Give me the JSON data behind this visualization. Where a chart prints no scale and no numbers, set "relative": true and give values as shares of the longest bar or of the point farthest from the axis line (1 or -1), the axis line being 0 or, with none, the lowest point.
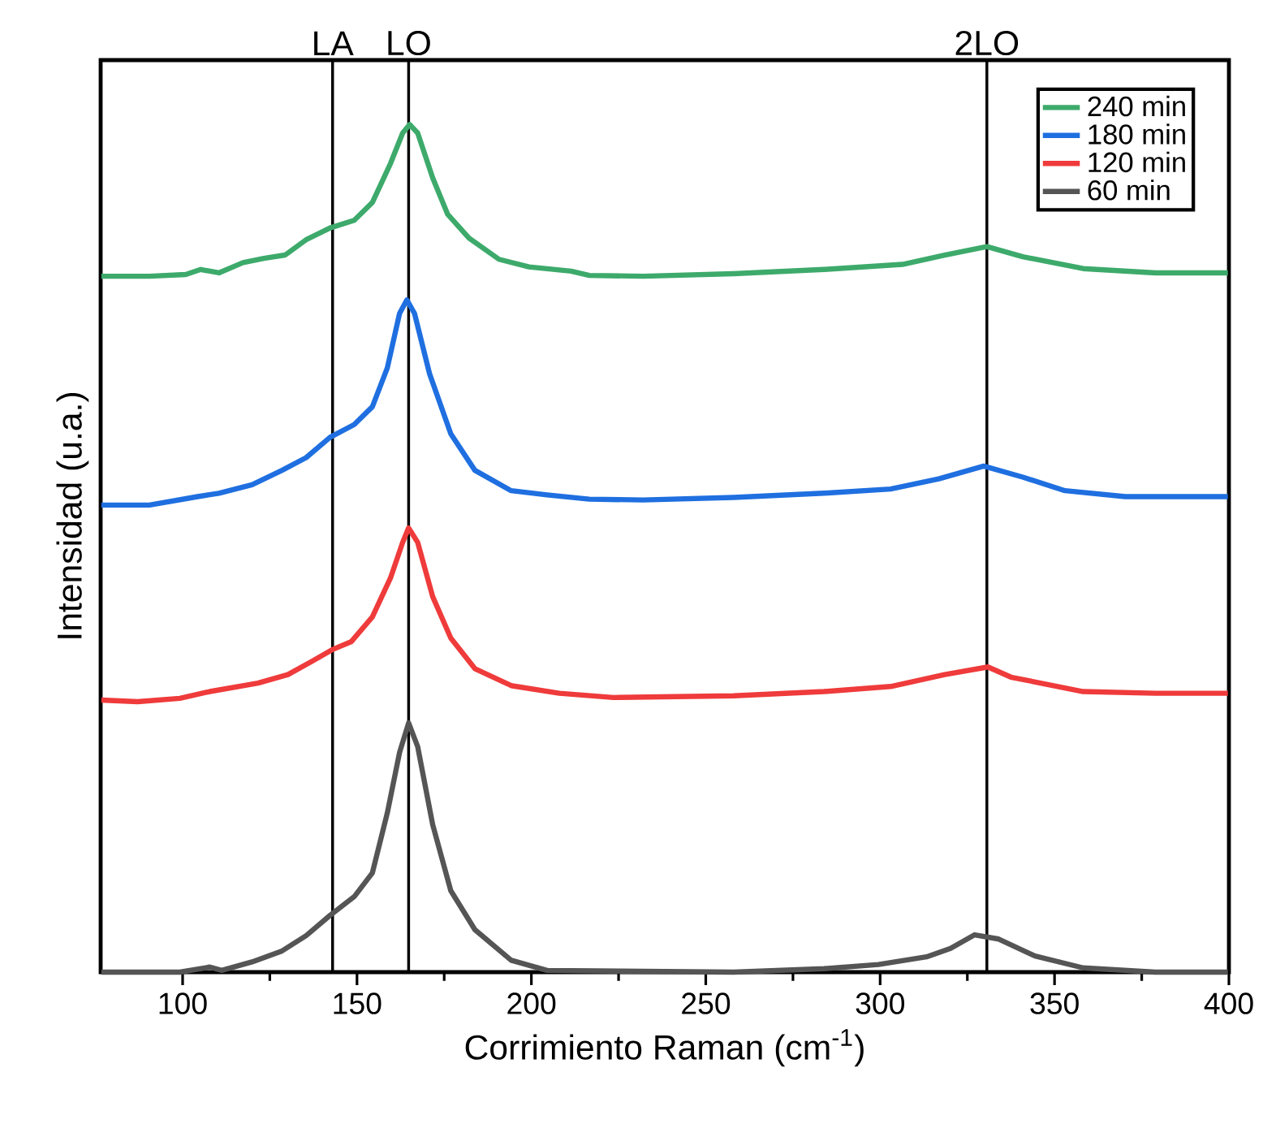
{
  "chart_data": {
    "type": "line",
    "xlabel": "Corrimiento Raman (cm$^{-1}$)",
    "ylabel": "Intensidad (u.a.)",
    "relative": true,
    "xlim": [
      76.5,
      400
    ],
    "xticks": [
      100,
      150,
      200,
      250,
      300,
      350,
      400
    ],
    "legend": "top right",
    "ref_lines": [
      {
        "axis": "x",
        "value": 143,
        "label": "LA",
        "color": "#000000"
      },
      {
        "axis": "x",
        "value": 164.8,
        "label": "LO",
        "color": "#000000"
      },
      {
        "axis": "x",
        "value": 330.6,
        "label": "2LO",
        "color": "#000000"
      }
    ],
    "series": [
      {
        "name": "240 min",
        "color": "#3daa6b",
        "x": [
          76.7,
          90.5,
          100.9,
          105.2,
          110.4,
          117.3,
          123.3,
          129.4,
          135.4,
          142.3,
          149.2,
          154.4,
          159.6,
          163.1,
          165.1,
          167.4,
          171.7,
          176.0,
          182.1,
          190.7,
          199.3,
          211.4,
          216.6,
          232.1,
          258.0,
          283.9,
          306.4,
          318.5,
          330.6,
          340.9,
          358.2,
          378.9,
          399.7
        ],
        "values": [
          0.821,
          0.821,
          0.823,
          0.829,
          0.825,
          0.837,
          0.842,
          0.846,
          0.864,
          0.878,
          0.887,
          0.908,
          0.954,
          0.99,
          1.0,
          0.99,
          0.937,
          0.894,
          0.866,
          0.841,
          0.832,
          0.827,
          0.822,
          0.821,
          0.824,
          0.829,
          0.835,
          0.846,
          0.856,
          0.844,
          0.83,
          0.825,
          0.825
        ]
      },
      {
        "name": "180 min",
        "color": "#1f6fe0",
        "x": [
          76.7,
          90.5,
          104.3,
          110.4,
          119.9,
          128.5,
          135.4,
          142.3,
          149.2,
          154.4,
          158.7,
          162.2,
          164.3,
          166.5,
          170.8,
          176.9,
          183.8,
          194.2,
          204.5,
          216.6,
          232.1,
          258.0,
          283.9,
          303.0,
          316.8,
          329.7,
          340.9,
          353.0,
          370.3,
          399.7
        ],
        "values": [
          0.551,
          0.551,
          0.561,
          0.565,
          0.575,
          0.592,
          0.607,
          0.631,
          0.646,
          0.667,
          0.713,
          0.777,
          0.793,
          0.777,
          0.706,
          0.635,
          0.592,
          0.568,
          0.563,
          0.558,
          0.557,
          0.56,
          0.565,
          0.57,
          0.582,
          0.597,
          0.584,
          0.568,
          0.561,
          0.561
        ]
      },
      {
        "name": "120 min",
        "color": "#ef3b3b",
        "x": [
          76.7,
          87.1,
          99.2,
          107.8,
          121.6,
          130.2,
          137.2,
          143.2,
          148.4,
          154.4,
          159.6,
          163.1,
          164.8,
          167.4,
          171.7,
          176.9,
          183.8,
          194.2,
          208.0,
          223.5,
          258.0,
          283.9,
          303.0,
          318.5,
          330.9,
          337.5,
          358.2,
          378.9,
          399.7
        ],
        "values": [
          0.321,
          0.319,
          0.323,
          0.331,
          0.341,
          0.351,
          0.367,
          0.381,
          0.39,
          0.419,
          0.465,
          0.507,
          0.524,
          0.507,
          0.443,
          0.394,
          0.358,
          0.338,
          0.329,
          0.324,
          0.326,
          0.331,
          0.337,
          0.351,
          0.36,
          0.348,
          0.331,
          0.329,
          0.329
        ]
      },
      {
        "name": "60 min",
        "color": "#555555",
        "x": [
          76.7,
          99.2,
          107.8,
          111.2,
          119.9,
          128.5,
          135.4,
          142.3,
          149.2,
          154.4,
          158.7,
          162.2,
          164.8,
          167.4,
          171.7,
          176.9,
          183.8,
          194.2,
          204.5,
          258.0,
          283.9,
          299.5,
          313.3,
          320.2,
          327.1,
          334.0,
          344.4,
          358.2,
          378.9,
          399.7
        ],
        "values": [
          0,
          0,
          0.006,
          0.002,
          0.012,
          0.025,
          0.043,
          0.067,
          0.089,
          0.117,
          0.188,
          0.259,
          0.294,
          0.266,
          0.174,
          0.096,
          0.05,
          0.014,
          0.002,
          0,
          0.004,
          0.009,
          0.018,
          0.028,
          0.044,
          0.039,
          0.019,
          0.005,
          0,
          0
        ]
      }
    ]
  }
}
